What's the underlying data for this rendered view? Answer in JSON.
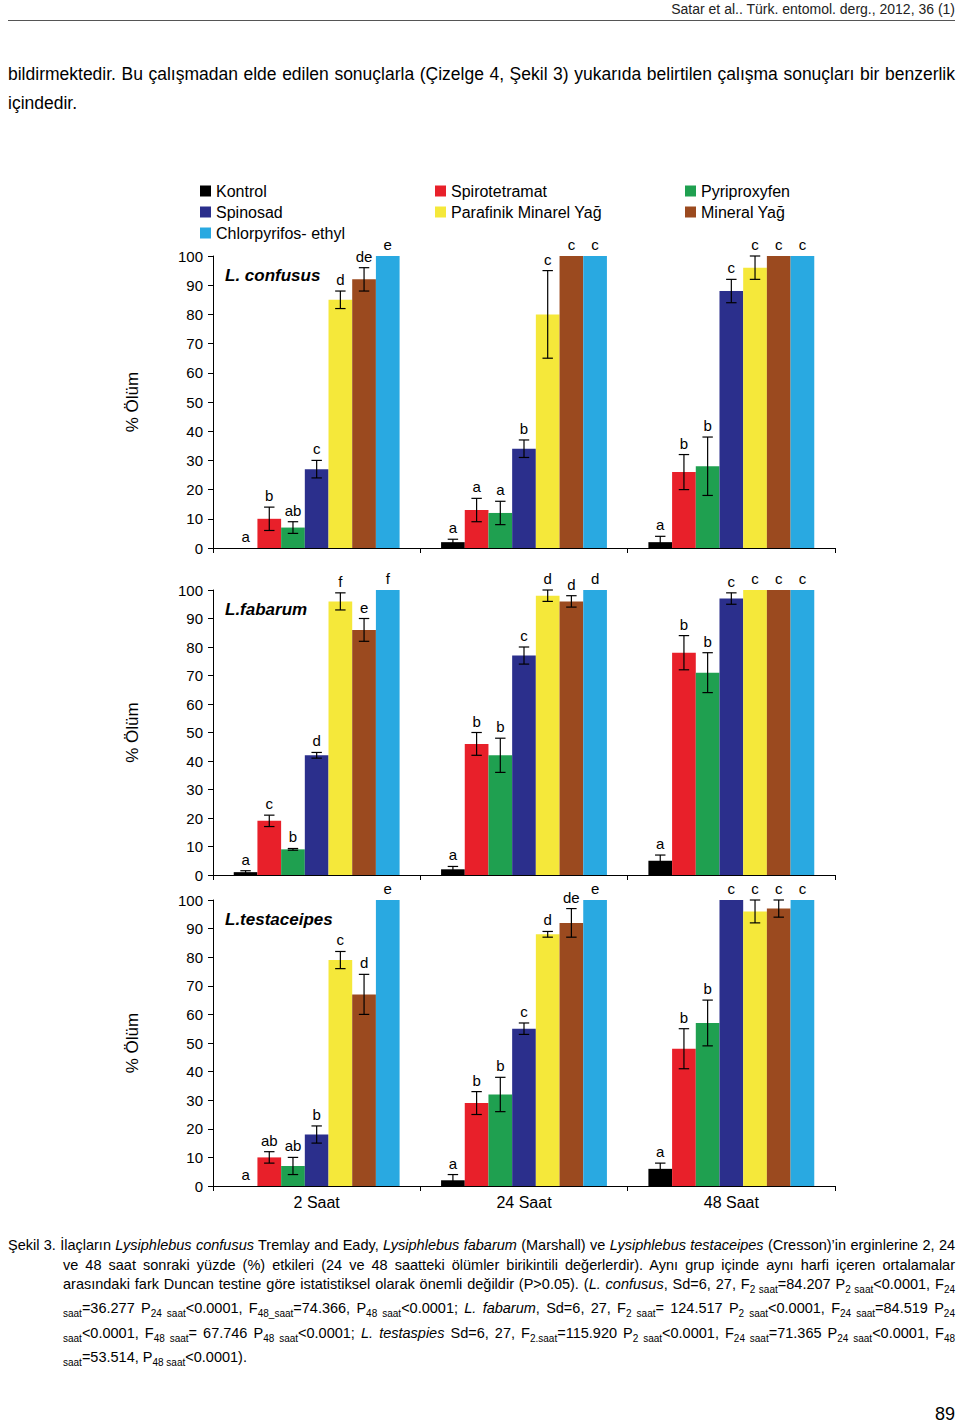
{
  "header": "Satar et al.. Türk. entomol. derg., 2012, 36 (1)",
  "paragraph": "bildirmektedir. Bu çalışmadan elde edilen sonuçlarla (Çizelge 4, Şekil 3) yukarıda belirtilen çalışma sonuçları bir benzerlik içindedir.",
  "chart_data": [
    {
      "type": "bar",
      "title": "L. confusus",
      "y_label": "% Ölüm",
      "categories": [
        "2 Saat",
        "24 Saat",
        "48 Saat"
      ],
      "ylim": [
        0,
        100
      ],
      "yticks": [
        0,
        10,
        20,
        30,
        40,
        50,
        60,
        70,
        80,
        90,
        100
      ],
      "grid": false,
      "legend": "top",
      "tick_labels": "y",
      "series": [
        {
          "name": "Kontrol",
          "color": "#000000",
          "values": [
            0,
            2,
            2
          ],
          "errors": [
            0,
            1,
            2
          ],
          "letters": [
            "a",
            "a",
            "a"
          ]
        },
        {
          "name": "Spirotetramat",
          "color": "#e8202a",
          "values": [
            10,
            13,
            26
          ],
          "errors": [
            4,
            4,
            6
          ],
          "letters": [
            "b",
            "a",
            "b"
          ]
        },
        {
          "name": "Pyriproxyfen",
          "color": "#1fa050",
          "values": [
            7,
            12,
            28
          ],
          "errors": [
            2,
            4,
            10
          ],
          "letters": [
            "ab",
            "a",
            "b"
          ]
        },
        {
          "name": "Spinosad",
          "color": "#2b2f8c",
          "values": [
            27,
            34,
            88
          ],
          "errors": [
            3,
            3,
            4
          ],
          "letters": [
            "c",
            "b",
            "c"
          ]
        },
        {
          "name": "Parafinik Minarel Yağ",
          "color": "#f5e83a",
          "values": [
            85,
            80,
            96
          ],
          "errors": [
            3,
            15,
            4
          ],
          "letters": [
            "d",
            "c",
            "c"
          ]
        },
        {
          "name": "Mineral Yağ",
          "color": "#9b4a1f",
          "values": [
            92,
            100,
            100
          ],
          "errors": [
            4,
            0,
            0
          ],
          "letters": [
            "de",
            "c",
            "c"
          ]
        },
        {
          "name": "Chlorpyrifos- ethyl",
          "color": "#29a9e1",
          "values": [
            100,
            100,
            100
          ],
          "errors": [
            0,
            0,
            0
          ],
          "letters": [
            "e",
            "c",
            "c"
          ]
        }
      ]
    },
    {
      "type": "bar",
      "title": "L.fabarum",
      "y_label": "% Ölüm",
      "categories": [
        "2 Saat",
        "24 Saat",
        "48 Saat"
      ],
      "ylim": [
        0,
        100
      ],
      "yticks": [
        0,
        10,
        20,
        30,
        40,
        50,
        60,
        70,
        80,
        90,
        100
      ],
      "grid": false,
      "tick_labels": "y",
      "series": [
        {
          "name": "Kontrol",
          "color": "#000000",
          "values": [
            1,
            2,
            5
          ],
          "errors": [
            0.5,
            1,
            2
          ],
          "letters": [
            "a",
            "a",
            "a"
          ]
        },
        {
          "name": "Spirotetramat",
          "color": "#e8202a",
          "values": [
            19,
            46,
            78
          ],
          "errors": [
            2,
            4,
            6
          ],
          "letters": [
            "c",
            "b",
            "b"
          ]
        },
        {
          "name": "Pyriproxyfen",
          "color": "#1fa050",
          "values": [
            9,
            42,
            71
          ],
          "errors": [
            0.3,
            6,
            7
          ],
          "letters": [
            "b",
            "b",
            "b"
          ]
        },
        {
          "name": "Spinosad",
          "color": "#2b2f8c",
          "values": [
            42,
            77,
            97
          ],
          "errors": [
            1,
            3,
            2
          ],
          "letters": [
            "d",
            "c",
            "c"
          ]
        },
        {
          "name": "Parafinik Minarel Yağ",
          "color": "#f5e83a",
          "values": [
            96,
            98,
            100
          ],
          "errors": [
            3,
            2,
            0
          ],
          "letters": [
            "f",
            "d",
            "c"
          ]
        },
        {
          "name": "Mineral Yağ",
          "color": "#9b4a1f",
          "values": [
            86,
            96,
            100
          ],
          "errors": [
            4,
            2,
            0
          ],
          "letters": [
            "e",
            "d",
            "c"
          ]
        },
        {
          "name": "Chlorpyrifos- ethyl",
          "color": "#29a9e1",
          "values": [
            100,
            100,
            100
          ],
          "errors": [
            0,
            0,
            0
          ],
          "letters": [
            "f",
            "d",
            "c"
          ]
        }
      ]
    },
    {
      "type": "bar",
      "title": "L.testaceipes",
      "y_label": "% Ölüm",
      "categories": [
        "2 Saat",
        "24 Saat",
        "48 Saat"
      ],
      "ylim": [
        0,
        100
      ],
      "yticks": [
        0,
        10,
        20,
        30,
        40,
        50,
        60,
        70,
        80,
        90,
        100
      ],
      "grid": false,
      "series": [
        {
          "name": "Kontrol",
          "color": "#000000",
          "values": [
            0,
            2,
            6
          ],
          "errors": [
            0,
            2,
            2
          ],
          "letters": [
            "a",
            "a",
            "a"
          ]
        },
        {
          "name": "Spirotetramat",
          "color": "#e8202a",
          "values": [
            10,
            29,
            48
          ],
          "errors": [
            2,
            4,
            7
          ],
          "letters": [
            "ab",
            "b",
            "b"
          ]
        },
        {
          "name": "Pyriproxyfen",
          "color": "#1fa050",
          "values": [
            7,
            32,
            57
          ],
          "errors": [
            3,
            6,
            8
          ],
          "letters": [
            "ab",
            "b",
            "b"
          ]
        },
        {
          "name": "Spinosad",
          "color": "#2b2f8c",
          "values": [
            18,
            55,
            100
          ],
          "errors": [
            3,
            2,
            0
          ],
          "letters": [
            "b",
            "c",
            "c"
          ]
        },
        {
          "name": "Parafinik Minarel Yağ",
          "color": "#f5e83a",
          "values": [
            79,
            88,
            96
          ],
          "errors": [
            3,
            1,
            4
          ],
          "letters": [
            "c",
            "d",
            "c"
          ]
        },
        {
          "name": "Mineral Yağ",
          "color": "#9b4a1f",
          "values": [
            67,
            92,
            97
          ],
          "errors": [
            7,
            5,
            3
          ],
          "letters": [
            "d",
            "de",
            "c"
          ]
        },
        {
          "name": "Chlorpyrifos- ethyl",
          "color": "#29a9e1",
          "values": [
            100,
            100,
            100
          ],
          "errors": [
            0,
            0,
            0
          ],
          "letters": [
            "e",
            "e",
            "c"
          ]
        }
      ]
    }
  ],
  "caption": [
    {
      "text": "Şekil 3. İlaçların "
    },
    {
      "text": "Lysiphlebus confusus",
      "italic": true
    },
    {
      "text": " Tremlay and Eady, "
    },
    {
      "text": "Lysiphlebus fabarum",
      "italic": true
    },
    {
      "text": " (Marshall) ve "
    },
    {
      "text": "Lysiphlebus testaceipes",
      "italic": true
    },
    {
      "text": " (Cresson)’in erginlerine 2, 24 ve 48 saat sonraki yüzde (%) etkileri (24 ve 48 saatteki ölümler birikintili değerlerdir). Aynı grup içinde aynı harfi içeren ortalamalar arasındaki fark Duncan testine göre istatistiksel olarak önemli değildir (P>0.05). ("
    },
    {
      "text": "L. confusus",
      "italic": true
    },
    {
      "text": ", Sd=6, 27, F"
    },
    {
      "text": "2 saat",
      "sub": true
    },
    {
      "text": "=84.207 P"
    },
    {
      "text": "2 saat",
      "sub": true
    },
    {
      "text": "<0.0001, F"
    },
    {
      "text": "24 saat",
      "sub": true
    },
    {
      "text": "=36.277 P"
    },
    {
      "text": "24 saat",
      "sub": true
    },
    {
      "text": "<0.0001, F"
    },
    {
      "text": "48_saat",
      "sub": true
    },
    {
      "text": "=74.366, P"
    },
    {
      "text": "48 saat",
      "sub": true
    },
    {
      "text": "<0.0001; "
    },
    {
      "text": "L. fabarum",
      "italic": true
    },
    {
      "text": ", Sd=6, 27, F"
    },
    {
      "text": "2 saat",
      "sub": true
    },
    {
      "text": "= 124.517 P"
    },
    {
      "text": "2 saat",
      "sub": true
    },
    {
      "text": "<0.0001, F"
    },
    {
      "text": "24 saat",
      "sub": true
    },
    {
      "text": "=84.519 P"
    },
    {
      "text": "24 saat",
      "sub": true
    },
    {
      "text": "<0.0001, F"
    },
    {
      "text": "48 saat",
      "sub": true
    },
    {
      "text": "= 67.746 P"
    },
    {
      "text": "48 saat",
      "sub": true
    },
    {
      "text": "<0.0001; "
    },
    {
      "text": "L. testaspies",
      "italic": true
    },
    {
      "text": " Sd=6, 27, F"
    },
    {
      "text": "2.saat",
      "sub": true
    },
    {
      "text": "=115.920 P"
    },
    {
      "text": "2 saat",
      "sub": true
    },
    {
      "text": "<0.0001, F"
    },
    {
      "text": "24 saat",
      "sub": true
    },
    {
      "text": "=71.365 P"
    },
    {
      "text": "24 saat",
      "sub": true
    },
    {
      "text": "<0.0001, F"
    },
    {
      "text": "48 saat",
      "sub": true
    },
    {
      "text": "=53.514, P"
    },
    {
      "text": "48 saat",
      "sub": true
    },
    {
      "text": "<0.0001)."
    }
  ],
  "page_number": "89"
}
